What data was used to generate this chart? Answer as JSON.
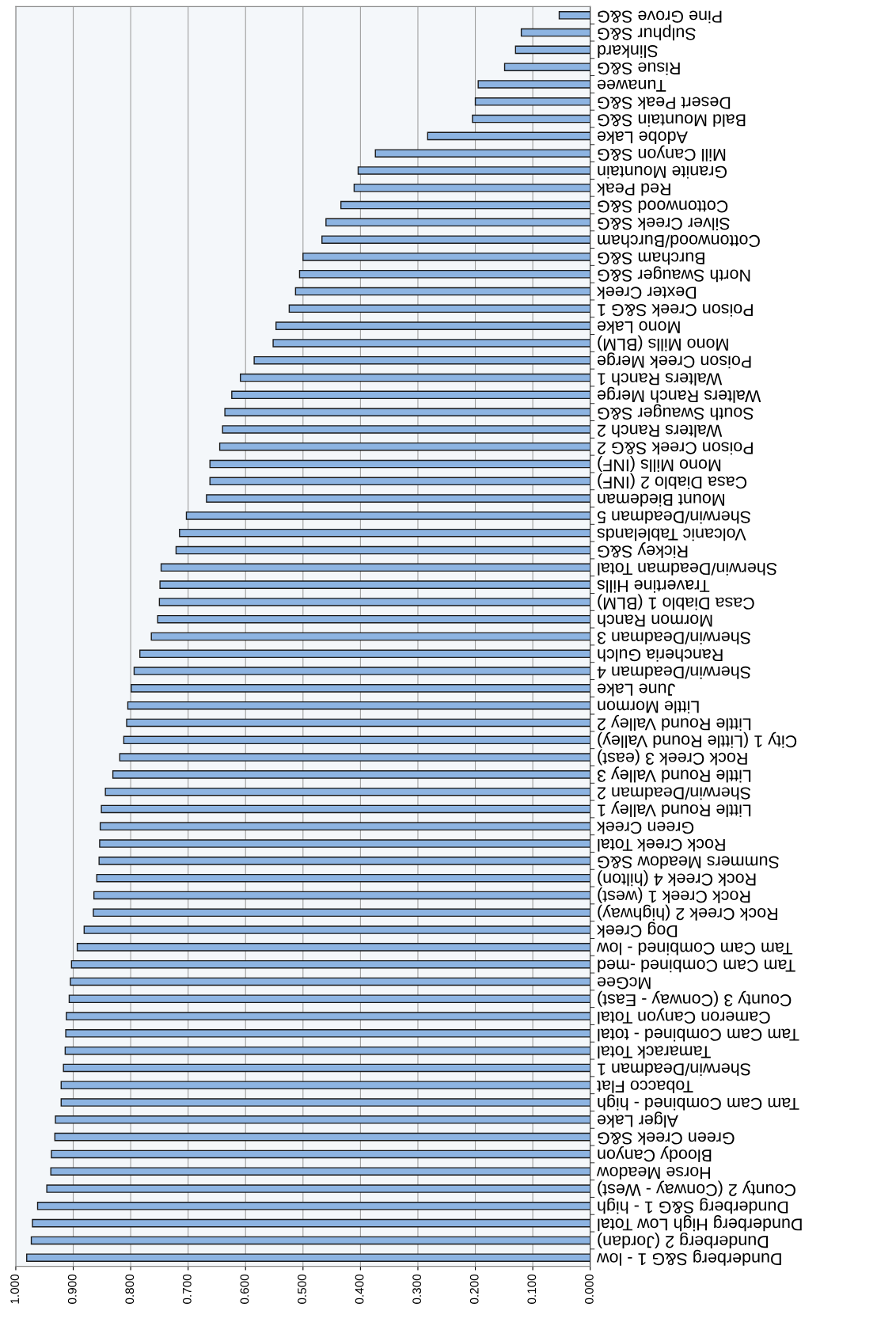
{
  "chart_data": {
    "type": "bar",
    "orientation": "horizontal",
    "categories": [
      "Pine Grove S&G",
      "Sulphur S&G",
      "Slinkard",
      "Risue S&G",
      "Tunawee",
      "Desert Peak S&G",
      "Bald Mountain S&G",
      "Adobe Lake",
      "Mill Canyon S&G",
      "Granite Mountain",
      "Red Peak",
      "Cottonwood S&G",
      "Silver Creek S&G",
      "Cottonwood/Burcham",
      "Burcham S&G",
      "North Swauger S&G",
      "Dexter Creek",
      "Poison Creek S&G 1",
      "Mono Lake",
      "Mono Mills (BLM)",
      "Poison Creek Merge",
      "Walters Ranch 1",
      "Walters Ranch Merge",
      "South Swauger S&G",
      "Walters Ranch 2",
      "Poison Creek S&G 2",
      "Mono Mills (INF)",
      "Casa Diablo 2 (INF)",
      "Mount Biedeman",
      "Sherwin/Deadman 5",
      "Volcanic Tablelands",
      "Rickey S&G",
      "Sherwin/Deadman Total",
      "Travertine Hills",
      "Casa Diablo 1 (BLM)",
      "Mormon Ranch",
      "Sherwin/Deadman 3",
      "Rancheria Gulch",
      "Sherwin/Deadman 4",
      "June Lake",
      "Little Mormon",
      "Little Round Valley 2",
      "City 1 (Little Round Valley)",
      "Rock Creek 3 (east)",
      "Little Round Valley 3",
      "Sherwin/Deadman 2",
      "Little Round Valley 1",
      "Green Creek",
      "Rock Creek Total",
      "Summers Meadow S&G",
      "Rock Creek 4 (hilton)",
      "Rock Creek 1 (west)",
      "Rock Creek 2 (highway)",
      "Dog Creek",
      "Tam Cam Combined - low",
      "Tam Cam Combined -med",
      "McGee",
      "County 3 (Conway - East)",
      "Cameron Canyon Total",
      "Tam Cam Combined - total",
      "Tamarack Total",
      "Sherwin/Deadman 1",
      "Tobacco Flat",
      "Tam Cam Combined - high",
      "Alger Lake",
      "Green Creek S&G",
      "Bloody Canyon",
      "Horse Meadow",
      "County 2 (Conway - West)",
      "Dunderberg S&G 1 - high",
      "Dunderberg High Low Total",
      "Dunderberg 2 (Jordan)",
      "Dunderberg S&G 1 - low"
    ],
    "values": [
      0.054,
      0.12,
      0.13,
      0.149,
      0.195,
      0.2,
      0.205,
      0.283,
      0.374,
      0.404,
      0.411,
      0.434,
      0.46,
      0.467,
      0.5,
      0.506,
      0.513,
      0.524,
      0.547,
      0.552,
      0.585,
      0.609,
      0.624,
      0.636,
      0.64,
      0.645,
      0.662,
      0.662,
      0.668,
      0.703,
      0.715,
      0.721,
      0.747,
      0.749,
      0.75,
      0.753,
      0.764,
      0.784,
      0.794,
      0.799,
      0.805,
      0.807,
      0.812,
      0.819,
      0.831,
      0.844,
      0.851,
      0.853,
      0.854,
      0.855,
      0.859,
      0.864,
      0.865,
      0.881,
      0.893,
      0.903,
      0.905,
      0.907,
      0.912,
      0.913,
      0.914,
      0.917,
      0.921,
      0.921,
      0.931,
      0.932,
      0.938,
      0.939,
      0.946,
      0.962,
      0.971,
      0.973,
      0.981
    ],
    "color": "#8db4e2",
    "xlim": [
      1.0,
      0.0
    ],
    "xticks": [
      {
        "value": 1.0,
        "label": "1.000"
      },
      {
        "value": 0.9,
        "label": "0.900"
      },
      {
        "value": 0.8,
        "label": "0.800"
      },
      {
        "value": 0.7,
        "label": "0.700"
      },
      {
        "value": 0.6,
        "label": "0.600"
      },
      {
        "value": 0.5,
        "label": "0.500"
      },
      {
        "value": 0.4,
        "label": "0.400"
      },
      {
        "value": 0.3,
        "label": "0.300"
      },
      {
        "value": 0.2,
        "label": "0.200"
      },
      {
        "value": 0.1,
        "label": "0.100"
      },
      {
        "value": 0.0,
        "label": "0.000"
      }
    ],
    "grid": "x"
  }
}
